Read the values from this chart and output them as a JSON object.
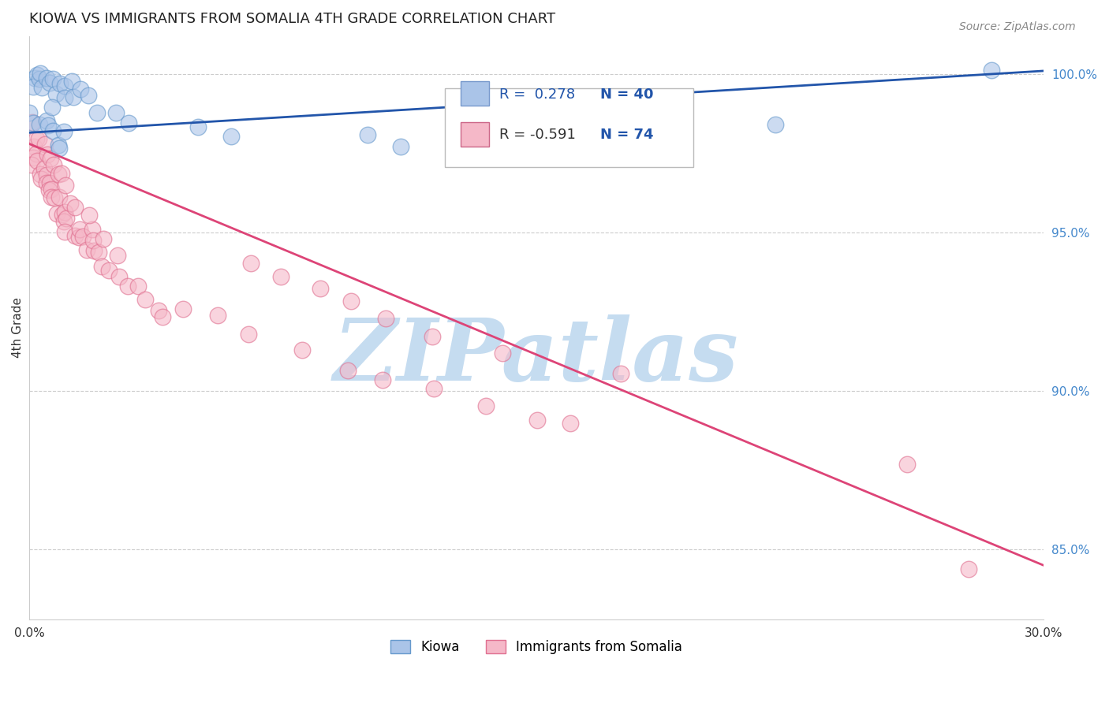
{
  "title": "KIOWA VS IMMIGRANTS FROM SOMALIA 4TH GRADE CORRELATION CHART",
  "source": "Source: ZipAtlas.com",
  "ylabel": "4th Grade",
  "xlim": [
    0.0,
    0.3
  ],
  "ylim": [
    0.828,
    1.012
  ],
  "x_ticks": [
    0.0,
    0.05,
    0.1,
    0.15,
    0.2,
    0.25,
    0.3
  ],
  "x_tick_labels": [
    "0.0%",
    "",
    "",
    "",
    "",
    "",
    "30.0%"
  ],
  "y_ticks_right": [
    0.85,
    0.9,
    0.95,
    1.0
  ],
  "y_tick_labels_right": [
    "85.0%",
    "90.0%",
    "95.0%",
    "100.0%"
  ],
  "grid_color": "#cccccc",
  "background_color": "#ffffff",
  "watermark": "ZIPatlas",
  "watermark_color": "#c5dcf0",
  "kiowa_color": "#aac4e8",
  "kiowa_edge_color": "#6699cc",
  "somalia_color": "#f5b8c8",
  "somalia_edge_color": "#e07090",
  "trend_blue_color": "#2255aa",
  "trend_pink_color": "#dd4477",
  "R_kiowa": 0.278,
  "N_kiowa": 40,
  "R_somalia": -0.591,
  "N_somalia": 74,
  "blue_trend_y0": 0.9815,
  "blue_trend_y1": 1.001,
  "pink_trend_y0": 0.978,
  "pink_trend_y1": 0.845,
  "kiowa_x": [
    0.001,
    0.002,
    0.002,
    0.003,
    0.003,
    0.004,
    0.005,
    0.006,
    0.007,
    0.008,
    0.009,
    0.01,
    0.011,
    0.012,
    0.013,
    0.015,
    0.018,
    0.02,
    0.025,
    0.03,
    0.001,
    0.002,
    0.003,
    0.004,
    0.005,
    0.006,
    0.007,
    0.008,
    0.009,
    0.01,
    0.05,
    0.06,
    0.1,
    0.11,
    0.155,
    0.16,
    0.17,
    0.175,
    0.22,
    0.285
  ],
  "kiowa_y": [
    0.998,
    1.0,
    0.997,
    0.999,
    1.001,
    0.996,
    0.999,
    0.997,
    0.998,
    0.994,
    0.997,
    0.996,
    0.993,
    0.997,
    0.992,
    0.995,
    0.991,
    0.987,
    0.988,
    0.985,
    0.988,
    0.985,
    0.983,
    0.986,
    0.984,
    0.99,
    0.981,
    0.979,
    0.977,
    0.982,
    0.983,
    0.98,
    0.981,
    0.976,
    0.981,
    0.984,
    0.979,
    0.983,
    0.985,
    1.002
  ],
  "somalia_x": [
    0.001,
    0.001,
    0.002,
    0.002,
    0.003,
    0.003,
    0.004,
    0.004,
    0.005,
    0.005,
    0.006,
    0.006,
    0.007,
    0.007,
    0.008,
    0.008,
    0.009,
    0.009,
    0.01,
    0.01,
    0.011,
    0.012,
    0.013,
    0.014,
    0.015,
    0.016,
    0.017,
    0.018,
    0.019,
    0.02,
    0.021,
    0.022,
    0.023,
    0.025,
    0.027,
    0.03,
    0.032,
    0.035,
    0.038,
    0.04,
    0.001,
    0.002,
    0.003,
    0.004,
    0.005,
    0.006,
    0.007,
    0.008,
    0.009,
    0.01,
    0.012,
    0.015,
    0.018,
    0.022,
    0.045,
    0.055,
    0.065,
    0.08,
    0.095,
    0.105,
    0.12,
    0.135,
    0.15,
    0.16,
    0.065,
    0.075,
    0.085,
    0.095,
    0.105,
    0.12,
    0.14,
    0.175,
    0.26,
    0.278
  ],
  "somalia_y": [
    0.978,
    0.974,
    0.975,
    0.971,
    0.972,
    0.968,
    0.97,
    0.966,
    0.968,
    0.965,
    0.966,
    0.962,
    0.964,
    0.96,
    0.962,
    0.958,
    0.96,
    0.956,
    0.958,
    0.955,
    0.956,
    0.952,
    0.95,
    0.948,
    0.952,
    0.948,
    0.945,
    0.95,
    0.944,
    0.948,
    0.944,
    0.941,
    0.938,
    0.942,
    0.938,
    0.935,
    0.932,
    0.928,
    0.926,
    0.922,
    0.984,
    0.981,
    0.979,
    0.977,
    0.975,
    0.973,
    0.971,
    0.969,
    0.967,
    0.965,
    0.961,
    0.958,
    0.954,
    0.949,
    0.926,
    0.922,
    0.918,
    0.914,
    0.908,
    0.904,
    0.9,
    0.895,
    0.89,
    0.888,
    0.94,
    0.936,
    0.932,
    0.928,
    0.924,
    0.918,
    0.912,
    0.905,
    0.875,
    0.845
  ]
}
